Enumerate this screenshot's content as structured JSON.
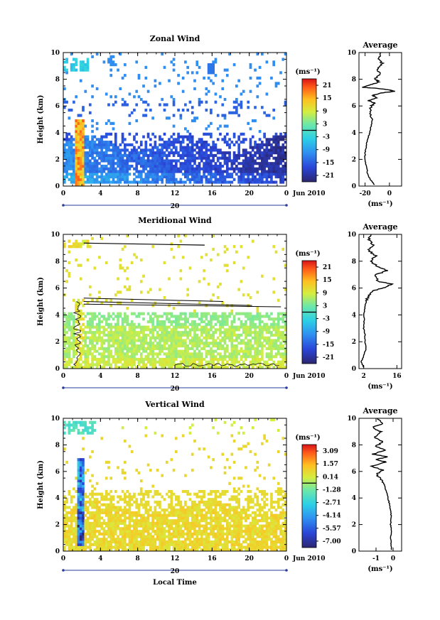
{
  "chart_data": [
    {
      "type": "heatmap",
      "title": "Zonal Wind",
      "ylabel": "Height (km)",
      "x_ticks": [
        "0",
        "4",
        "8",
        "12",
        "16",
        "20",
        "0"
      ],
      "xlim": [
        0,
        24
      ],
      "ylim": [
        0,
        10
      ],
      "y_ticks": [
        "0",
        "2",
        "4",
        "6",
        "8",
        "10"
      ],
      "date_tick": "20",
      "date_label": "Jun 2010",
      "colorbar": {
        "unit": "(ms⁻¹)",
        "ticks": [
          "21",
          "15",
          "9",
          "3",
          "-3",
          "-9",
          "-15",
          "-21"
        ],
        "range": [
          -24,
          24
        ],
        "zero_line": 0
      },
      "average": {
        "title": "Average",
        "xlabel": "(ms⁻¹)",
        "x_ticks": [
          "-20",
          "0"
        ],
        "xlim": [
          -25,
          10
        ],
        "profile": [
          [
            -12,
            0.1
          ],
          [
            -16,
            0.5
          ],
          [
            -18,
            1.0
          ],
          [
            -19,
            1.5
          ],
          [
            -20,
            2.0
          ],
          [
            -20,
            2.5
          ],
          [
            -19,
            3.0
          ],
          [
            -18,
            3.5
          ],
          [
            -16,
            4.0
          ],
          [
            -15,
            4.5
          ],
          [
            -14,
            5.0
          ],
          [
            -16,
            5.5
          ],
          [
            -15,
            6.0
          ],
          [
            -12,
            6.2
          ],
          [
            -17,
            6.4
          ],
          [
            -10,
            6.6
          ],
          [
            -14,
            6.8
          ],
          [
            -5,
            7.0
          ],
          [
            5,
            7.1
          ],
          [
            0,
            7.2
          ],
          [
            -8,
            7.3
          ],
          [
            -22,
            7.4
          ],
          [
            -15,
            7.6
          ],
          [
            -8,
            7.8
          ],
          [
            -12,
            8.0
          ],
          [
            -8,
            8.4
          ],
          [
            -10,
            8.8
          ],
          [
            -6,
            9.2
          ],
          [
            -9,
            9.6
          ],
          [
            -7,
            10.0
          ]
        ]
      }
    },
    {
      "type": "heatmap",
      "title": "Meridional Wind",
      "ylabel": "Height (km)",
      "x_ticks": [
        "0",
        "4",
        "8",
        "12",
        "16",
        "20",
        "0"
      ],
      "xlim": [
        0,
        24
      ],
      "ylim": [
        0,
        10
      ],
      "y_ticks": [
        "0",
        "2",
        "4",
        "6",
        "8",
        "10"
      ],
      "date_tick": "20",
      "date_label": "Jun 2010",
      "colorbar": {
        "unit": "(ms⁻¹)",
        "ticks": [
          "21",
          "15",
          "9",
          "3",
          "-3",
          "-9",
          "-15",
          "-21"
        ],
        "range": [
          -24,
          24
        ],
        "zero_line": 0
      },
      "average": {
        "title": "Average",
        "xlabel": "(ms⁻¹)",
        "x_ticks": [
          "2",
          "16"
        ],
        "xlim": [
          0,
          18
        ],
        "profile": [
          [
            2,
            0.1
          ],
          [
            1,
            0.5
          ],
          [
            2,
            1.0
          ],
          [
            3,
            1.5
          ],
          [
            2.5,
            2.0
          ],
          [
            2.5,
            2.5
          ],
          [
            2,
            3.0
          ],
          [
            2.2,
            3.5
          ],
          [
            2,
            4.0
          ],
          [
            2.5,
            4.5
          ],
          [
            3,
            5.0
          ],
          [
            4,
            5.4
          ],
          [
            6,
            5.8
          ],
          [
            10,
            6.0
          ],
          [
            14,
            6.3
          ],
          [
            8,
            6.5
          ],
          [
            7,
            7.0
          ],
          [
            12,
            7.3
          ],
          [
            8,
            7.6
          ],
          [
            5,
            8.0
          ],
          [
            7,
            8.4
          ],
          [
            4,
            8.8
          ],
          [
            6,
            9.2
          ],
          [
            4,
            9.6
          ],
          [
            5,
            10.0
          ]
        ]
      }
    },
    {
      "type": "heatmap",
      "title": "Vertical Wind",
      "ylabel": "Height (km)",
      "xlabel": "Local Time",
      "x_ticks": [
        "0",
        "4",
        "8",
        "12",
        "16",
        "20",
        "0"
      ],
      "xlim": [
        0,
        24
      ],
      "ylim": [
        0,
        10
      ],
      "y_ticks": [
        "0",
        "2",
        "4",
        "6",
        "8",
        "10"
      ],
      "date_tick": "20",
      "date_label": "Jun 2010",
      "colorbar": {
        "unit": "(ms⁻¹)",
        "ticks": [
          "3.09",
          "1.57",
          "0.14",
          "-1.28",
          "-2.71",
          "-4.14",
          "-5.57",
          "-7.00"
        ],
        "range": [
          -7.7,
          3.8
        ],
        "zero_line": -0.5
      },
      "average": {
        "title": "Average",
        "xlabel": "(ms⁻¹)",
        "x_ticks": [
          "-1",
          "0"
        ],
        "xlim": [
          -2,
          0.5
        ],
        "profile": [
          [
            -0.1,
            0.1
          ],
          [
            -0.1,
            0.5
          ],
          [
            -0.15,
            1.0
          ],
          [
            -0.1,
            1.5
          ],
          [
            -0.15,
            2.0
          ],
          [
            -0.1,
            2.5
          ],
          [
            -0.15,
            3.0
          ],
          [
            -0.2,
            3.5
          ],
          [
            -0.3,
            4.0
          ],
          [
            -0.4,
            4.5
          ],
          [
            -0.5,
            5.0
          ],
          [
            -0.7,
            5.4
          ],
          [
            -1.0,
            5.8
          ],
          [
            -0.6,
            6.1
          ],
          [
            -1.3,
            6.4
          ],
          [
            -0.4,
            6.7
          ],
          [
            -1.0,
            6.9
          ],
          [
            -0.3,
            7.1
          ],
          [
            -1.2,
            7.3
          ],
          [
            -0.5,
            7.6
          ],
          [
            -1.0,
            7.9
          ],
          [
            -0.6,
            8.2
          ],
          [
            -1.1,
            8.6
          ],
          [
            -0.7,
            9.0
          ],
          [
            -1.2,
            9.3
          ],
          [
            -0.6,
            9.6
          ],
          [
            -0.9,
            10.0
          ]
        ]
      }
    }
  ]
}
